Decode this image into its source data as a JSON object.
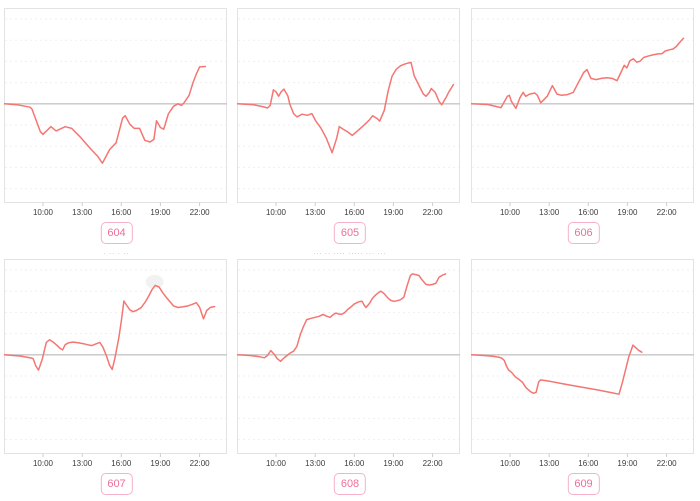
{
  "page": {
    "background": "#ffffff",
    "grid_cols": 3,
    "grid_rows": 2
  },
  "colors": {
    "line": "#f47672",
    "zero_line": "#c6c6c6",
    "grid_line": "#efefef",
    "box_border": "#e3e3e3",
    "tick_mark": "#cccccc",
    "tick_text": "#3c3c3c",
    "badge_text": "#ee6f9b",
    "badge_border": "#f7b1c9",
    "fragment_text": "#9a9a9a"
  },
  "axis": {
    "tick_labels": [
      "10:00",
      "13:00",
      "16:00",
      "19:00",
      "22:00"
    ],
    "tick_hours": [
      10,
      13,
      16,
      19,
      22
    ],
    "hour_origin": 10,
    "frac_at_origin": 0.175,
    "frac_per_hour": 0.0585,
    "ylim": [
      -117,
      113
    ],
    "grid_values": [
      -100,
      -75,
      -50,
      -25,
      25,
      50,
      75,
      100
    ],
    "y_axis_labels_shown": false
  },
  "chart_data": [
    {
      "badge": "604",
      "type": "line",
      "x_unit": "hour-of-day",
      "y_unit": "relative-change (no y labels shown)",
      "top_fragment": "ˉˉ",
      "points": [
        [
          7,
          0
        ],
        [
          8,
          -1
        ],
        [
          9,
          -4
        ],
        [
          9.15,
          -6
        ],
        [
          9.8,
          -33
        ],
        [
          10,
          -36
        ],
        [
          10.6,
          -27
        ],
        [
          11,
          -32
        ],
        [
          11.7,
          -27
        ],
        [
          12.2,
          -29
        ],
        [
          12.9,
          -40
        ],
        [
          13.7,
          -54
        ],
        [
          14.2,
          -62
        ],
        [
          14.55,
          -70
        ],
        [
          15.1,
          -54
        ],
        [
          15.6,
          -46
        ],
        [
          16.1,
          -17
        ],
        [
          16.3,
          -14
        ],
        [
          16.65,
          -24
        ],
        [
          17,
          -29
        ],
        [
          17.4,
          -29
        ],
        [
          17.8,
          -43
        ],
        [
          18.2,
          -45
        ],
        [
          18.5,
          -42
        ],
        [
          18.7,
          -20
        ],
        [
          19,
          -28
        ],
        [
          19.25,
          -30
        ],
        [
          19.6,
          -12
        ],
        [
          20,
          -3
        ],
        [
          20.35,
          0
        ],
        [
          20.6,
          -2
        ],
        [
          20.8,
          1
        ],
        [
          21.2,
          10
        ],
        [
          21.5,
          25
        ],
        [
          21.75,
          35
        ],
        [
          22,
          43.5
        ],
        [
          22.45,
          44
        ]
      ]
    },
    {
      "badge": "605",
      "type": "line",
      "x_unit": "hour-of-day",
      "y_unit": "relative-change (no y labels shown)",
      "top_fragment": "",
      "points": [
        [
          7,
          0
        ],
        [
          8.3,
          -1.2
        ],
        [
          9.1,
          -3.8
        ],
        [
          9.35,
          -5
        ],
        [
          9.55,
          -1.9
        ],
        [
          9.8,
          16.5
        ],
        [
          10,
          14.2
        ],
        [
          10.2,
          8.8
        ],
        [
          10.4,
          14.2
        ],
        [
          10.6,
          17.3
        ],
        [
          10.9,
          9.6
        ],
        [
          11.05,
          0
        ],
        [
          11.35,
          -11.5
        ],
        [
          11.6,
          -15.4
        ],
        [
          12,
          -12.3
        ],
        [
          12.4,
          -13.5
        ],
        [
          12.75,
          -11.5
        ],
        [
          13.05,
          -20.4
        ],
        [
          13.45,
          -28.8
        ],
        [
          13.85,
          -40.4
        ],
        [
          14.3,
          -57.7
        ],
        [
          14.65,
          -40.4
        ],
        [
          14.85,
          -26.9
        ],
        [
          15.1,
          -29.6
        ],
        [
          15.45,
          -32.7
        ],
        [
          15.85,
          -37.3
        ],
        [
          16.25,
          -31.9
        ],
        [
          16.7,
          -25.8
        ],
        [
          17.15,
          -19.2
        ],
        [
          17.4,
          -14.2
        ],
        [
          17.75,
          -17.3
        ],
        [
          17.95,
          -20.4
        ],
        [
          18.3,
          -7.7
        ],
        [
          18.6,
          15.4
        ],
        [
          18.9,
          32.7
        ],
        [
          19.2,
          40.4
        ],
        [
          19.55,
          45
        ],
        [
          19.95,
          47.3
        ],
        [
          20.35,
          48.8
        ],
        [
          20.6,
          32.7
        ],
        [
          21,
          20.4
        ],
        [
          21.3,
          11.5
        ],
        [
          21.5,
          8.8
        ],
        [
          21.75,
          13.5
        ],
        [
          21.9,
          18.1
        ],
        [
          22.2,
          13.5
        ],
        [
          22.5,
          2.7
        ],
        [
          22.7,
          -1.2
        ],
        [
          23,
          6.5
        ],
        [
          23.25,
          14.2
        ],
        [
          23.6,
          22.7
        ]
      ]
    },
    {
      "badge": "606",
      "type": "line",
      "x_unit": "hour-of-day",
      "y_unit": "relative-change (no y labels shown)",
      "top_fragment": "˙ ˙",
      "points": [
        [
          7,
          0
        ],
        [
          8.3,
          -0.8
        ],
        [
          9.1,
          -3.8
        ],
        [
          9.3,
          -4.6
        ],
        [
          9.8,
          8.8
        ],
        [
          9.95,
          10
        ],
        [
          10.1,
          3.1
        ],
        [
          10.45,
          -5.4
        ],
        [
          10.75,
          6.9
        ],
        [
          11,
          13.5
        ],
        [
          11.2,
          8.8
        ],
        [
          11.5,
          11.5
        ],
        [
          11.9,
          12.7
        ],
        [
          12.1,
          10
        ],
        [
          12.35,
          1.2
        ],
        [
          12.85,
          8.8
        ],
        [
          13.25,
          21.5
        ],
        [
          13.6,
          11.5
        ],
        [
          13.95,
          10
        ],
        [
          14.4,
          10.8
        ],
        [
          14.85,
          13.5
        ],
        [
          15.25,
          25.4
        ],
        [
          15.65,
          36.9
        ],
        [
          15.9,
          40.4
        ],
        [
          16.2,
          30
        ],
        [
          16.6,
          28.5
        ],
        [
          17,
          30
        ],
        [
          17.4,
          30.8
        ],
        [
          17.85,
          30
        ],
        [
          18.2,
          27.3
        ],
        [
          18.5,
          36.9
        ],
        [
          18.75,
          45.4
        ],
        [
          18.95,
          42.3
        ],
        [
          19.2,
          50.8
        ],
        [
          19.45,
          53.1
        ],
        [
          19.7,
          49.2
        ],
        [
          19.95,
          50
        ],
        [
          20.25,
          54.6
        ],
        [
          20.55,
          56.2
        ],
        [
          20.95,
          57.7
        ],
        [
          21.3,
          58.8
        ],
        [
          21.65,
          59.2
        ],
        [
          21.9,
          62.3
        ],
        [
          22.25,
          63.8
        ],
        [
          22.5,
          64.6
        ],
        [
          22.75,
          67.7
        ],
        [
          23,
          72.3
        ],
        [
          23.3,
          77.3
        ]
      ]
    },
    {
      "badge": "607",
      "type": "line",
      "x_unit": "hour-of-day",
      "y_unit": "relative-change (no y labels shown)",
      "top_fragment": "· ·· · ··",
      "smudge": {
        "h": 18.55,
        "v": 86,
        "rx": 9,
        "ry": 7
      },
      "points": [
        [
          7,
          0
        ],
        [
          8.3,
          -1.5
        ],
        [
          9.1,
          -3.8
        ],
        [
          9.25,
          -4.6
        ],
        [
          9.45,
          -13.1
        ],
        [
          9.65,
          -18.1
        ],
        [
          9.95,
          -4.6
        ],
        [
          10.25,
          14.6
        ],
        [
          10.5,
          17.7
        ],
        [
          10.8,
          14.6
        ],
        [
          11.05,
          11.5
        ],
        [
          11.3,
          7.7
        ],
        [
          11.5,
          5.8
        ],
        [
          11.7,
          11.9
        ],
        [
          11.95,
          14.2
        ],
        [
          12.3,
          15
        ],
        [
          12.7,
          14.2
        ],
        [
          13.1,
          13.1
        ],
        [
          13.4,
          11.9
        ],
        [
          13.75,
          10.8
        ],
        [
          14.1,
          13.1
        ],
        [
          14.35,
          14.6
        ],
        [
          14.6,
          8.8
        ],
        [
          14.85,
          -0.8
        ],
        [
          15.1,
          -12.3
        ],
        [
          15.3,
          -17.3
        ],
        [
          15.5,
          -4.6
        ],
        [
          15.8,
          19.2
        ],
        [
          16,
          39.6
        ],
        [
          16.2,
          63.5
        ],
        [
          16.4,
          58.8
        ],
        [
          16.65,
          53.1
        ],
        [
          16.9,
          50.8
        ],
        [
          17.15,
          52.3
        ],
        [
          17.5,
          55.4
        ],
        [
          17.8,
          61.5
        ],
        [
          18.1,
          69.2
        ],
        [
          18.35,
          76.9
        ],
        [
          18.6,
          81.9
        ],
        [
          18.9,
          80
        ],
        [
          19.15,
          73.8
        ],
        [
          19.45,
          67.7
        ],
        [
          19.75,
          62.3
        ],
        [
          20,
          57.7
        ],
        [
          20.35,
          55.8
        ],
        [
          20.7,
          56.5
        ],
        [
          21.1,
          57.7
        ],
        [
          21.45,
          59.6
        ],
        [
          21.75,
          61.5
        ],
        [
          22,
          56.2
        ],
        [
          22.3,
          42.3
        ],
        [
          22.55,
          52.3
        ],
        [
          22.85,
          56.2
        ],
        [
          23.15,
          56.9
        ]
      ]
    },
    {
      "badge": "608",
      "type": "line",
      "x_unit": "hour-of-day",
      "y_unit": "relative-change (no y labels shown)",
      "top_fragment": "··· ·· ···· ····· ··· ···",
      "points": [
        [
          7,
          0
        ],
        [
          8,
          -0.8
        ],
        [
          8.75,
          -2.3
        ],
        [
          9.1,
          -3.5
        ],
        [
          9.35,
          -0.8
        ],
        [
          9.6,
          5
        ],
        [
          9.85,
          0.8
        ],
        [
          10.1,
          -4.6
        ],
        [
          10.35,
          -7.7
        ],
        [
          10.6,
          -3.8
        ],
        [
          10.85,
          -0.8
        ],
        [
          11.1,
          2.3
        ],
        [
          11.35,
          4.2
        ],
        [
          11.6,
          10
        ],
        [
          11.85,
          23.5
        ],
        [
          12.1,
          33.1
        ],
        [
          12.35,
          41.5
        ],
        [
          12.7,
          43.1
        ],
        [
          13,
          44.2
        ],
        [
          13.3,
          45.4
        ],
        [
          13.6,
          47.7
        ],
        [
          13.9,
          45.4
        ],
        [
          14.15,
          44.2
        ],
        [
          14.4,
          47.7
        ],
        [
          14.6,
          49.2
        ],
        [
          14.8,
          48.1
        ],
        [
          15,
          47.7
        ],
        [
          15.25,
          49.6
        ],
        [
          15.5,
          53.5
        ],
        [
          15.75,
          56.5
        ],
        [
          16,
          60
        ],
        [
          16.2,
          61.5
        ],
        [
          16.4,
          62.7
        ],
        [
          16.6,
          63.1
        ],
        [
          16.75,
          58.8
        ],
        [
          16.9,
          55.8
        ],
        [
          17.15,
          60.4
        ],
        [
          17.4,
          66.9
        ],
        [
          17.65,
          70.8
        ],
        [
          17.9,
          73.8
        ],
        [
          18.05,
          75
        ],
        [
          18.3,
          71.9
        ],
        [
          18.55,
          67.3
        ],
        [
          18.8,
          64.2
        ],
        [
          19.05,
          63.1
        ],
        [
          19.3,
          63.8
        ],
        [
          19.55,
          65
        ],
        [
          19.8,
          68.1
        ],
        [
          20.05,
          81.5
        ],
        [
          20.3,
          93.5
        ],
        [
          20.45,
          95.4
        ],
        [
          20.7,
          94.6
        ],
        [
          20.95,
          93.5
        ],
        [
          21.25,
          87.3
        ],
        [
          21.5,
          83.1
        ],
        [
          21.75,
          82.3
        ],
        [
          22,
          83.1
        ],
        [
          22.25,
          84.2
        ],
        [
          22.5,
          91.5
        ],
        [
          22.8,
          94.2
        ],
        [
          23,
          95.4
        ]
      ]
    },
    {
      "badge": "609",
      "type": "line",
      "x_unit": "hour-of-day",
      "y_unit": "relative-change (no y labels shown)",
      "top_fragment": "",
      "points": [
        [
          7,
          0
        ],
        [
          8,
          -0.8
        ],
        [
          8.75,
          -1.9
        ],
        [
          9.1,
          -2.7
        ],
        [
          9.35,
          -3.8
        ],
        [
          9.55,
          -6.5
        ],
        [
          9.75,
          -14.2
        ],
        [
          9.9,
          -18.1
        ],
        [
          10.15,
          -21.2
        ],
        [
          10.4,
          -25.8
        ],
        [
          10.7,
          -29.2
        ],
        [
          10.95,
          -32.3
        ],
        [
          11.2,
          -38.5
        ],
        [
          11.4,
          -41.2
        ],
        [
          11.6,
          -43.8
        ],
        [
          11.8,
          -45.4
        ],
        [
          12,
          -44.2
        ],
        [
          12.2,
          -31.9
        ],
        [
          12.35,
          -29.6
        ],
        [
          13.05,
          -31.2
        ],
        [
          14.35,
          -35
        ],
        [
          15.6,
          -38.5
        ],
        [
          16.85,
          -41.9
        ],
        [
          17.9,
          -45
        ],
        [
          18.35,
          -46.5
        ],
        [
          18.6,
          -33.5
        ],
        [
          18.85,
          -18.1
        ],
        [
          19.1,
          -2.7
        ],
        [
          19.3,
          5.8
        ],
        [
          19.42,
          11.5
        ],
        [
          19.6,
          8.8
        ],
        [
          19.85,
          5.4
        ],
        [
          20.1,
          3.1
        ]
      ]
    }
  ]
}
